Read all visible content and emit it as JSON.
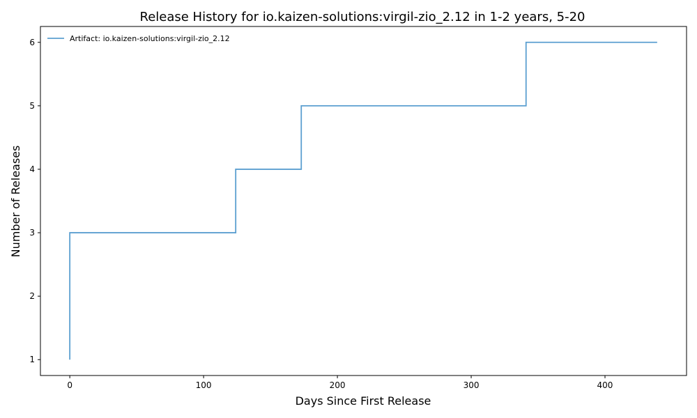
{
  "chart_data": {
    "type": "line",
    "step": "post",
    "title": "Release History for io.kaizen-solutions:virgil-zio_2.12 in 1-2 years, 5-20",
    "xlabel": "Days Since First Release",
    "ylabel": "Number of Releases",
    "xlim": [
      -21.95,
      460.95
    ],
    "ylim": [
      0.75,
      6.25
    ],
    "xticks": [
      0,
      100,
      200,
      300,
      400
    ],
    "yticks": [
      1,
      2,
      3,
      4,
      5,
      6
    ],
    "grid": false,
    "legend_position": "top-left",
    "series": [
      {
        "name": "Artifact: io.kaizen-solutions:virgil-zio_2.12",
        "color": "#5b9fd0",
        "x": [
          0,
          0,
          0,
          124,
          173,
          341,
          439
        ],
        "y": [
          1,
          2,
          3,
          4,
          5,
          6,
          6
        ]
      }
    ]
  }
}
